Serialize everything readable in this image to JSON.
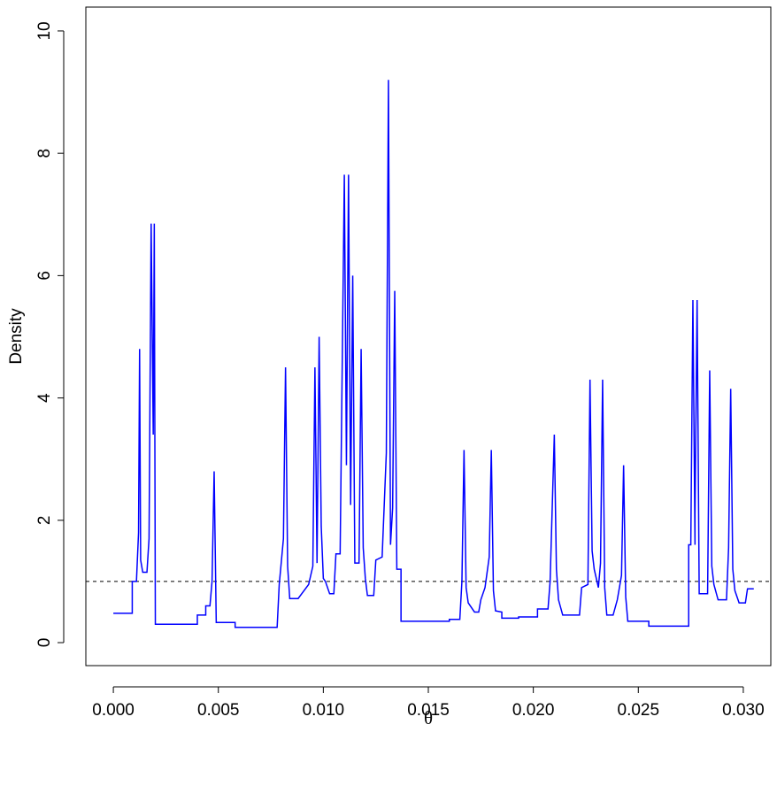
{
  "chart_data": {
    "type": "line",
    "xlabel": "θ",
    "ylabel": "Density",
    "color": "#0000ff",
    "x": [
      0.0,
      0.0009,
      0.0009,
      0.0011,
      0.0012,
      0.00125,
      0.0013,
      0.0014,
      0.0016,
      0.0017,
      0.0018,
      0.0019,
      0.00195,
      0.002,
      0.004,
      0.004,
      0.0044,
      0.0044,
      0.0046,
      0.0047,
      0.0048,
      0.0049,
      0.0058,
      0.0058,
      0.0078,
      0.0079,
      0.0081,
      0.0082,
      0.0083,
      0.0084,
      0.0088,
      0.0093,
      0.0095,
      0.0096,
      0.0097,
      0.0098,
      0.0099,
      0.01,
      0.0101,
      0.0103,
      0.0105,
      0.0106,
      0.0108,
      0.011,
      0.0111,
      0.0112,
      0.0113,
      0.0114,
      0.0115,
      0.0117,
      0.0118,
      0.0119,
      0.012,
      0.0121,
      0.0124,
      0.0125,
      0.0128,
      0.013,
      0.0131,
      0.0132,
      0.0133,
      0.0134,
      0.0135,
      0.0137,
      0.0137,
      0.016,
      0.016,
      0.0165,
      0.0166,
      0.0167,
      0.0168,
      0.0169,
      0.0172,
      0.0174,
      0.0175,
      0.0177,
      0.0179,
      0.018,
      0.0181,
      0.0182,
      0.0185,
      0.0185,
      0.0193,
      0.0193,
      0.0202,
      0.0202,
      0.0207,
      0.0208,
      0.021,
      0.0211,
      0.0212,
      0.0214,
      0.0222,
      0.0223,
      0.0226,
      0.0227,
      0.0228,
      0.0229,
      0.0231,
      0.0232,
      0.0233,
      0.0234,
      0.0235,
      0.0238,
      0.024,
      0.0242,
      0.0243,
      0.0244,
      0.0245,
      0.0255,
      0.0255,
      0.0274,
      0.0274,
      0.0275,
      0.0276,
      0.0277,
      0.0277,
      0.0278,
      0.0279,
      0.0283,
      0.0284,
      0.0285,
      0.0286,
      0.0288,
      0.0292,
      0.0293,
      0.0294,
      0.0295,
      0.0296,
      0.0298,
      0.0301,
      0.0302,
      0.0305
    ],
    "values": [
      0.48,
      0.48,
      1.0,
      1.0,
      1.8,
      4.8,
      1.35,
      1.15,
      1.15,
      1.7,
      6.85,
      3.4,
      6.85,
      0.3,
      0.3,
      0.45,
      0.45,
      0.6,
      0.6,
      1.0,
      2.8,
      0.33,
      0.33,
      0.25,
      0.25,
      0.95,
      1.7,
      4.5,
      1.25,
      0.72,
      0.72,
      0.95,
      1.25,
      4.5,
      1.3,
      5.0,
      1.9,
      1.05,
      1.0,
      0.8,
      0.8,
      1.45,
      1.45,
      7.65,
      2.9,
      7.65,
      2.25,
      6.0,
      1.3,
      1.3,
      4.8,
      1.55,
      1.05,
      0.77,
      0.77,
      1.35,
      1.4,
      3.1,
      9.2,
      1.6,
      2.2,
      5.75,
      1.2,
      1.2,
      0.35,
      0.35,
      0.38,
      0.38,
      1.0,
      3.15,
      0.9,
      0.65,
      0.5,
      0.5,
      0.7,
      0.9,
      1.4,
      3.15,
      0.85,
      0.52,
      0.5,
      0.4,
      0.4,
      0.42,
      0.42,
      0.55,
      0.55,
      1.0,
      3.4,
      1.2,
      0.7,
      0.45,
      0.45,
      0.9,
      0.95,
      4.3,
      1.5,
      1.2,
      0.9,
      1.3,
      4.3,
      0.9,
      0.45,
      0.45,
      0.7,
      1.1,
      2.9,
      0.75,
      0.35,
      0.35,
      0.27,
      0.27,
      1.6,
      1.6,
      5.6,
      1.6,
      2.1,
      5.6,
      0.8,
      0.8,
      4.45,
      1.25,
      0.95,
      0.7,
      0.7,
      1.55,
      4.15,
      1.2,
      0.85,
      0.65,
      0.65,
      0.88,
      0.88
    ],
    "hline": 1,
    "xlim": [
      -0.00131,
      0.03131
    ],
    "ylim": [
      -0.376,
      10.39
    ],
    "xticks": [
      {
        "value": 0,
        "label": "0.000"
      },
      {
        "value": 0.005,
        "label": "0.005"
      },
      {
        "value": 0.01,
        "label": "0.010"
      },
      {
        "value": 0.015,
        "label": "0.015"
      },
      {
        "value": 0.02,
        "label": "0.020"
      },
      {
        "value": 0.025,
        "label": "0.025"
      },
      {
        "value": 0.03,
        "label": "0.030"
      }
    ],
    "yticks": [
      0,
      2,
      4,
      6,
      8,
      10
    ]
  }
}
